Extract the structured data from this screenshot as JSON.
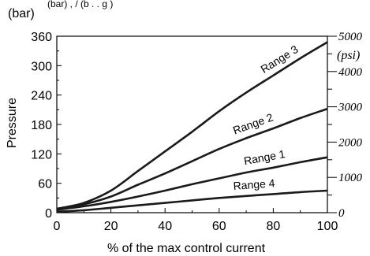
{
  "chart_data": {
    "type": "line",
    "title_partial": "(bar) , / (b . . g )",
    "xlabel": "% of the max control current",
    "ylabel": "Pressure",
    "yunit_left": "(bar)",
    "yunit_right": "(psi)",
    "xlim": [
      0,
      100
    ],
    "ylim": [
      0,
      360
    ],
    "ylim_psi": [
      0,
      5000
    ],
    "grid": false,
    "x_ticks": [
      "0",
      "20",
      "40",
      "60",
      "80",
      "100"
    ],
    "y_ticks_left": [
      "0",
      "60",
      "120",
      "180",
      "240",
      "300",
      "360"
    ],
    "y_ticks_right": [
      "0",
      "1000",
      "2000",
      "3000",
      "4000",
      "5000"
    ],
    "x": [
      0,
      10,
      20,
      30,
      40,
      50,
      60,
      70,
      80,
      90,
      100
    ],
    "series": [
      {
        "name": "Range 3",
        "values": [
          8,
          20,
          45,
          85,
          125,
          165,
          207,
          245,
          280,
          315,
          348
        ]
      },
      {
        "name": "Range 2",
        "values": [
          8,
          17,
          33,
          57,
          80,
          105,
          130,
          152,
          172,
          193,
          212
        ]
      },
      {
        "name": "Range 1",
        "values": [
          6,
          13,
          22,
          33,
          45,
          58,
          70,
          82,
          92,
          103,
          113
        ]
      },
      {
        "name": "Range 4",
        "values": [
          2,
          5,
          10,
          15,
          20,
          25,
          30,
          34,
          38,
          42,
          45
        ]
      }
    ]
  }
}
